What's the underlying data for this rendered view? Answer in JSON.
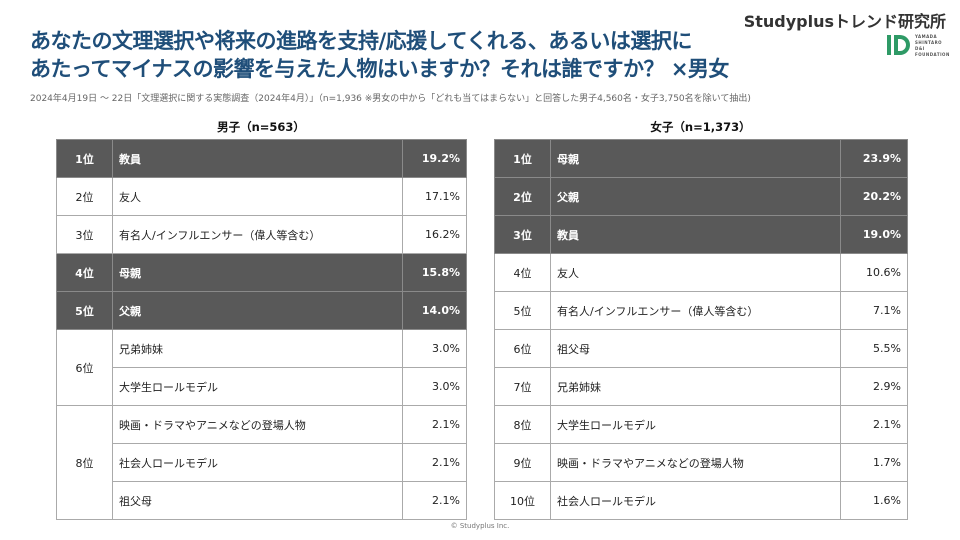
{
  "header": {
    "title_line1": "あなたの文理選択や将来の進路を支持/応援してくれる、あるいは選択に",
    "title_line2": "あたってマイナスの影響を与えた人物はいますか？それは誰ですか？ ×男女",
    "subtitle": "2024年4月19日 〜 22日「文理選択に関する実態調査（2024年4月）」（n=1,936 ※男女の中から「どれも当てはまらない」と回答した男子4,560名・女子3,750名を除いて抽出)",
    "brand": "Studyplusトレンド研究所",
    "logo_text": [
      "YAMADA",
      "SHINTARO",
      "D&I",
      "FOUNDATION"
    ]
  },
  "colors": {
    "title": "#1f4e79",
    "highlight_row": "#595959",
    "logo_green": "#2e9a66"
  },
  "male": {
    "heading": "男子（n=563）",
    "rows": [
      {
        "rank": "1位",
        "items": [
          {
            "label": "教員",
            "value": "19.2%"
          }
        ],
        "highlight": true
      },
      {
        "rank": "2位",
        "items": [
          {
            "label": "友人",
            "value": "17.1%"
          }
        ],
        "highlight": false
      },
      {
        "rank": "3位",
        "items": [
          {
            "label": "有名人/インフルエンサー（偉人等含む）",
            "value": "16.2%"
          }
        ],
        "highlight": false
      },
      {
        "rank": "4位",
        "items": [
          {
            "label": "母親",
            "value": "15.8%"
          }
        ],
        "highlight": true
      },
      {
        "rank": "5位",
        "items": [
          {
            "label": "父親",
            "value": "14.0%"
          }
        ],
        "highlight": true
      },
      {
        "rank": "6位",
        "items": [
          {
            "label": "兄弟姉妹",
            "value": "3.0%"
          },
          {
            "label": "大学生ロールモデル",
            "value": "3.0%"
          }
        ],
        "highlight": false
      },
      {
        "rank": "8位",
        "items": [
          {
            "label": "映画・ドラマやアニメなどの登場人物",
            "value": "2.1%"
          },
          {
            "label": "社会人ロールモデル",
            "value": "2.1%"
          },
          {
            "label": "祖父母",
            "value": "2.1%"
          }
        ],
        "highlight": false
      }
    ]
  },
  "female": {
    "heading": "女子（n=1,373）",
    "rows": [
      {
        "rank": "1位",
        "items": [
          {
            "label": "母親",
            "value": "23.9%"
          }
        ],
        "highlight": true
      },
      {
        "rank": "2位",
        "items": [
          {
            "label": "父親",
            "value": "20.2%"
          }
        ],
        "highlight": true
      },
      {
        "rank": "3位",
        "items": [
          {
            "label": "教員",
            "value": "19.0%"
          }
        ],
        "highlight": true
      },
      {
        "rank": "4位",
        "items": [
          {
            "label": "友人",
            "value": "10.6%"
          }
        ],
        "highlight": false
      },
      {
        "rank": "5位",
        "items": [
          {
            "label": "有名人/インフルエンサー（偉人等含む）",
            "value": "7.1%"
          }
        ],
        "highlight": false
      },
      {
        "rank": "6位",
        "items": [
          {
            "label": "祖父母",
            "value": "5.5%"
          }
        ],
        "highlight": false
      },
      {
        "rank": "7位",
        "items": [
          {
            "label": "兄弟姉妹",
            "value": "2.9%"
          }
        ],
        "highlight": false
      },
      {
        "rank": "8位",
        "items": [
          {
            "label": "大学生ロールモデル",
            "value": "2.1%"
          }
        ],
        "highlight": false
      },
      {
        "rank": "9位",
        "items": [
          {
            "label": "映画・ドラマやアニメなどの登場人物",
            "value": "1.7%"
          }
        ],
        "highlight": false
      },
      {
        "rank": "10位",
        "items": [
          {
            "label": "社会人ロールモデル",
            "value": "1.6%"
          }
        ],
        "highlight": false
      }
    ]
  },
  "footer": {
    "copyright": "© Studyplus Inc."
  }
}
